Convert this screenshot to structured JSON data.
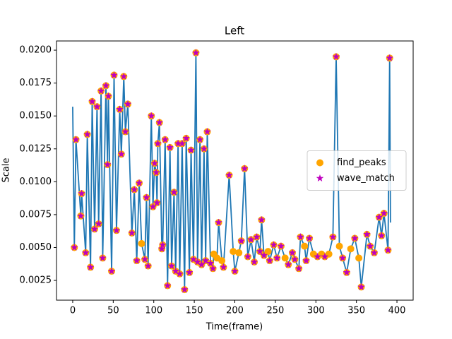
{
  "chart_data": {
    "type": "line",
    "title": "Left",
    "xlabel": "Time(frame)",
    "ylabel": "Scale",
    "xlim": [
      -20,
      420
    ],
    "ylim": [
      0.001,
      0.0207
    ],
    "xticks": [
      0,
      50,
      100,
      150,
      200,
      250,
      300,
      350,
      400
    ],
    "yticks": [
      {
        "value": 0.0025,
        "label": "0.0025"
      },
      {
        "value": 0.005,
        "label": "0.0050"
      },
      {
        "value": 0.0075,
        "label": "0.0075"
      },
      {
        "value": 0.01,
        "label": "0.0100"
      },
      {
        "value": 0.0125,
        "label": "0.0125"
      },
      {
        "value": 0.015,
        "label": "0.0150"
      },
      {
        "value": 0.0175,
        "label": "0.0175"
      },
      {
        "value": 0.02,
        "label": "0.0200"
      }
    ],
    "grid": false,
    "legend": "center right",
    "series": [
      {
        "type": "line",
        "color": "#1f77b4",
        "x": [
          0,
          2,
          4,
          10,
          11,
          16,
          18,
          22,
          24,
          27,
          30,
          32,
          35,
          37,
          41,
          43,
          44,
          48,
          51,
          54,
          58,
          60,
          63,
          65,
          68,
          73,
          76,
          79,
          82,
          85,
          89,
          91,
          93,
          97,
          99,
          101,
          103,
          104,
          105,
          107,
          110,
          111,
          114,
          117,
          120,
          122,
          125,
          127,
          130,
          132,
          135,
          138,
          140,
          144,
          146,
          149,
          152,
          154,
          157,
          159,
          162,
          164,
          166,
          170,
          173,
          174,
          178,
          180,
          184,
          186,
          193,
          198,
          200,
          205,
          208,
          212,
          216,
          220,
          224,
          227,
          231,
          233,
          236,
          241,
          243,
          248,
          252,
          257,
          262,
          266,
          271,
          274,
          279,
          281,
          286,
          288,
          292,
          297,
          302,
          307,
          311,
          316,
          321,
          325,
          329,
          333,
          338,
          343,
          348,
          353,
          356,
          363,
          367,
          372,
          378,
          381,
          384,
          389,
          391,
          392
        ],
        "values": [
          0.0157,
          0.005,
          0.0132,
          0.0074,
          0.0091,
          0.0046,
          0.0136,
          0.0035,
          0.0161,
          0.0064,
          0.0157,
          0.0068,
          0.0169,
          0.0042,
          0.0173,
          0.0113,
          0.0165,
          0.0032,
          0.0181,
          0.0063,
          0.0155,
          0.0121,
          0.018,
          0.0138,
          0.0159,
          0.0061,
          0.0094,
          0.004,
          0.0099,
          0.0053,
          0.0041,
          0.0088,
          0.0036,
          0.015,
          0.0081,
          0.0114,
          0.0107,
          0.0084,
          0.0129,
          0.0145,
          0.0049,
          0.0052,
          0.0132,
          0.0021,
          0.0126,
          0.0036,
          0.0092,
          0.0032,
          0.0129,
          0.003,
          0.0129,
          0.0018,
          0.0133,
          0.0031,
          0.0124,
          0.0041,
          0.0198,
          0.0039,
          0.0132,
          0.0037,
          0.0125,
          0.004,
          0.0138,
          0.0038,
          0.0034,
          0.0045,
          0.0042,
          0.0069,
          0.004,
          0.0035,
          0.0105,
          0.0047,
          0.0032,
          0.0046,
          0.0055,
          0.011,
          0.0043,
          0.0056,
          0.0039,
          0.0058,
          0.0047,
          0.0071,
          0.0044,
          0.0047,
          0.004,
          0.0052,
          0.0042,
          0.0051,
          0.0042,
          0.0037,
          0.0046,
          0.0041,
          0.0034,
          0.0058,
          0.0051,
          0.004,
          0.0057,
          0.0045,
          0.0043,
          0.0045,
          0.0043,
          0.0045,
          0.0058,
          0.0195,
          0.0051,
          0.0042,
          0.0031,
          0.0049,
          0.0057,
          0.0042,
          0.002,
          0.006,
          0.0051,
          0.0046,
          0.0073,
          0.0059,
          0.0076,
          0.0048,
          0.0194,
          0.0069
        ]
      },
      {
        "name": "find_peaks",
        "type": "scatter",
        "marker": "circle",
        "color": "#ffa500",
        "x": [
          2,
          4,
          10,
          11,
          16,
          18,
          22,
          24,
          27,
          30,
          32,
          35,
          37,
          41,
          43,
          44,
          48,
          51,
          54,
          58,
          60,
          63,
          65,
          68,
          73,
          76,
          79,
          82,
          85,
          89,
          91,
          93,
          97,
          99,
          101,
          103,
          104,
          105,
          107,
          110,
          111,
          114,
          117,
          120,
          122,
          125,
          127,
          130,
          132,
          135,
          138,
          140,
          144,
          146,
          149,
          152,
          154,
          157,
          159,
          162,
          164,
          166,
          170,
          173,
          174,
          178,
          180,
          184,
          186,
          193,
          198,
          200,
          205,
          208,
          212,
          216,
          220,
          224,
          227,
          231,
          233,
          236,
          241,
          243,
          248,
          252,
          257,
          262,
          266,
          271,
          274,
          279,
          281,
          286,
          288,
          292,
          297,
          302,
          307,
          311,
          316,
          321,
          325,
          329,
          333,
          338,
          343,
          348,
          353,
          356,
          363,
          367,
          372,
          378,
          381,
          384,
          389,
          391
        ],
        "values": [
          0.005,
          0.0132,
          0.0074,
          0.0091,
          0.0046,
          0.0136,
          0.0035,
          0.0161,
          0.0064,
          0.0157,
          0.0068,
          0.0169,
          0.0042,
          0.0173,
          0.0113,
          0.0165,
          0.0032,
          0.0181,
          0.0063,
          0.0155,
          0.0121,
          0.018,
          0.0138,
          0.0159,
          0.0061,
          0.0094,
          0.004,
          0.0099,
          0.0053,
          0.0041,
          0.0088,
          0.0036,
          0.015,
          0.0081,
          0.0114,
          0.0107,
          0.0084,
          0.0129,
          0.0145,
          0.0049,
          0.0052,
          0.0132,
          0.0021,
          0.0126,
          0.0036,
          0.0092,
          0.0032,
          0.0129,
          0.003,
          0.0129,
          0.0018,
          0.0133,
          0.0031,
          0.0124,
          0.0041,
          0.0198,
          0.0039,
          0.0132,
          0.0037,
          0.0125,
          0.004,
          0.0138,
          0.0038,
          0.0034,
          0.0045,
          0.0042,
          0.0069,
          0.004,
          0.0035,
          0.0105,
          0.0047,
          0.0032,
          0.0046,
          0.0055,
          0.011,
          0.0043,
          0.0056,
          0.0039,
          0.0058,
          0.0047,
          0.0071,
          0.0044,
          0.0047,
          0.004,
          0.0052,
          0.0042,
          0.0051,
          0.0042,
          0.0037,
          0.0046,
          0.0041,
          0.0034,
          0.0058,
          0.0051,
          0.004,
          0.0057,
          0.0045,
          0.0043,
          0.0045,
          0.0043,
          0.0045,
          0.0058,
          0.0195,
          0.0051,
          0.0042,
          0.0031,
          0.0049,
          0.0057,
          0.0042,
          0.002,
          0.006,
          0.0051,
          0.0046,
          0.0073,
          0.0059,
          0.0076,
          0.0048,
          0.0194
        ]
      },
      {
        "name": "wave_match",
        "type": "scatter",
        "marker": "star",
        "color": "#bf00bf",
        "x": [
          2,
          4,
          10,
          11,
          16,
          18,
          22,
          24,
          27,
          30,
          32,
          35,
          37,
          41,
          43,
          44,
          48,
          51,
          54,
          58,
          60,
          63,
          65,
          68,
          73,
          76,
          79,
          82,
          89,
          91,
          93,
          97,
          99,
          101,
          103,
          104,
          105,
          107,
          110,
          111,
          114,
          117,
          120,
          122,
          125,
          127,
          130,
          132,
          135,
          138,
          140,
          144,
          146,
          149,
          152,
          154,
          157,
          159,
          162,
          164,
          166,
          170,
          173,
          180,
          186,
          193,
          200,
          208,
          212,
          216,
          220,
          224,
          227,
          231,
          233,
          236,
          243,
          248,
          252,
          257,
          266,
          271,
          274,
          279,
          281,
          288,
          292,
          302,
          311,
          321,
          325,
          333,
          338,
          348,
          356,
          363,
          367,
          372,
          378,
          381,
          384,
          389,
          391
        ],
        "values": [
          0.005,
          0.0132,
          0.0074,
          0.0091,
          0.0046,
          0.0136,
          0.0035,
          0.0161,
          0.0064,
          0.0157,
          0.0068,
          0.0169,
          0.0042,
          0.0173,
          0.0113,
          0.0165,
          0.0032,
          0.0181,
          0.0063,
          0.0155,
          0.0121,
          0.018,
          0.0138,
          0.0159,
          0.0061,
          0.0094,
          0.004,
          0.0099,
          0.0041,
          0.0088,
          0.0036,
          0.015,
          0.0081,
          0.0114,
          0.0107,
          0.0084,
          0.0129,
          0.0145,
          0.0049,
          0.0052,
          0.0132,
          0.0021,
          0.0126,
          0.0036,
          0.0092,
          0.0032,
          0.0129,
          0.003,
          0.0129,
          0.0018,
          0.0133,
          0.0031,
          0.0124,
          0.0041,
          0.0198,
          0.0039,
          0.0132,
          0.0037,
          0.0125,
          0.004,
          0.0138,
          0.0038,
          0.0034,
          0.0069,
          0.0035,
          0.0105,
          0.0032,
          0.0055,
          0.011,
          0.0043,
          0.0056,
          0.0039,
          0.0058,
          0.0047,
          0.0071,
          0.0044,
          0.004,
          0.0052,
          0.0042,
          0.0051,
          0.0037,
          0.0046,
          0.0041,
          0.0034,
          0.0058,
          0.004,
          0.0057,
          0.0043,
          0.0043,
          0.0058,
          0.0195,
          0.0042,
          0.0031,
          0.0057,
          0.002,
          0.006,
          0.0051,
          0.0046,
          0.0073,
          0.0059,
          0.0076,
          0.0048,
          0.0194
        ]
      }
    ]
  }
}
